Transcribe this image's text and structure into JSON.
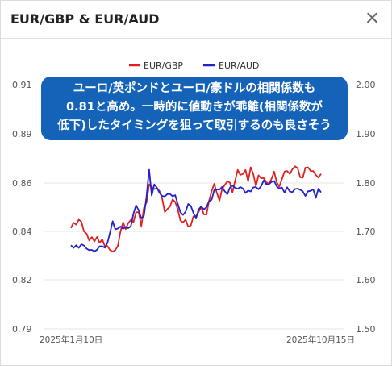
{
  "header": {
    "title": "EUR/GBP & EUR/AUD"
  },
  "callout": {
    "lines": [
      "ユーロ/英ポンドとユーロ/豪ドルの相関係数も",
      "0.81と高め。一時的に値動きが乖離(相関係数が",
      "低下)したタイミングを狙って取引するのも良さそう"
    ]
  },
  "chart_data": {
    "type": "line",
    "legend": {
      "position": "top"
    },
    "grid": true,
    "x_labels": [
      "2025年1月10日",
      "2025年10月15日"
    ],
    "left_axis": {
      "ylim": [
        0.79,
        0.91
      ],
      "ticks": [
        "0.91",
        "0.89",
        "0.86",
        "0.84",
        "0.82",
        "0.79"
      ]
    },
    "right_axis": {
      "ylim": [
        1.5,
        2.0
      ],
      "ticks": [
        "2.00",
        "1.90",
        "1.80",
        "1.70",
        "1.60",
        "1.50"
      ]
    },
    "series": [
      {
        "name": "EUR/GBP",
        "color": "#e02020",
        "axis": "left",
        "values": [
          0.8396,
          0.8422,
          0.8413,
          0.8437,
          0.8427,
          0.8379,
          0.8368,
          0.8334,
          0.8351,
          0.833,
          0.8352,
          0.8323,
          0.834,
          0.8306,
          0.8307,
          0.8287,
          0.828,
          0.8287,
          0.8308,
          0.8379,
          0.8424,
          0.839,
          0.842,
          0.8436,
          0.8425,
          0.8474,
          0.8473,
          0.8405,
          0.8495,
          0.852,
          0.861,
          0.8598,
          0.8587,
          0.8591,
          0.8577,
          0.8542,
          0.8474,
          0.8489,
          0.8501,
          0.8536,
          0.8524,
          0.8487,
          0.8433,
          0.8423,
          0.8437,
          0.8402,
          0.8408,
          0.8453,
          0.8455,
          0.8475,
          0.8498,
          0.8463,
          0.8461,
          0.8528,
          0.8577,
          0.8613,
          0.8569,
          0.853,
          0.8587,
          0.8606,
          0.8625,
          0.8619,
          0.8571,
          0.8627,
          0.8681,
          0.8657,
          0.8661,
          0.8681,
          0.8625,
          0.8694,
          0.8661,
          0.8602,
          0.8655,
          0.864,
          0.8641,
          0.862,
          0.8612,
          0.8637,
          0.8673,
          0.862,
          0.8599,
          0.8637,
          0.8673,
          0.8676,
          0.8661,
          0.8684,
          0.8699,
          0.8691,
          0.8645,
          0.8643,
          0.8692,
          0.8694,
          0.8676,
          0.8676,
          0.8657,
          0.8643,
          0.8662
        ]
      },
      {
        "name": "EUR/AUD",
        "color": "#2222cc",
        "axis": "left",
        "values": [
          0.8311,
          0.8298,
          0.8311,
          0.8298,
          0.8316,
          0.8309,
          0.8294,
          0.8287,
          0.8288,
          0.8281,
          0.8289,
          0.8306,
          0.8306,
          0.8299,
          0.8323,
          0.8373,
          0.8429,
          0.8389,
          0.8393,
          0.8403,
          0.8392,
          0.8401,
          0.8395,
          0.8405,
          0.8467,
          0.8507,
          0.8482,
          0.8443,
          0.8455,
          0.8549,
          0.8682,
          0.8555,
          0.861,
          0.8593,
          0.8568,
          0.8553,
          0.8551,
          0.8562,
          0.8563,
          0.8552,
          0.8557,
          0.8514,
          0.8474,
          0.846,
          0.8476,
          0.8514,
          0.8505,
          0.847,
          0.8442,
          0.8487,
          0.8502,
          0.8487,
          0.8498,
          0.8527,
          0.8535,
          0.8582,
          0.8585,
          0.8584,
          0.8598,
          0.8577,
          0.8561,
          0.8594,
          0.8604,
          0.8594,
          0.8588,
          0.8597,
          0.859,
          0.8568,
          0.858,
          0.8575,
          0.8595,
          0.8597,
          0.8586,
          0.8601,
          0.863,
          0.8611,
          0.8611,
          0.8622,
          0.8627,
          0.86,
          0.859,
          0.8595,
          0.8569,
          0.8596,
          0.8575,
          0.8572,
          0.8587,
          0.8589,
          0.8583,
          0.8576,
          0.8553,
          0.8576,
          0.8578,
          0.8586,
          0.8544,
          0.8589,
          0.8571
        ]
      }
    ]
  }
}
